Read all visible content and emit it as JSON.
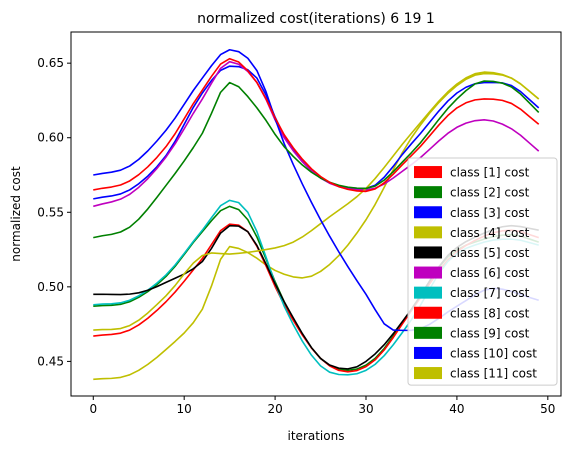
{
  "chart_data": {
    "type": "line",
    "title": "normalized cost(iterations) 6 19 1",
    "xlabel": "iterations",
    "ylabel": "normalized cost",
    "xlim": [
      -2.45,
      51.45
    ],
    "ylim": [
      0.4268,
      0.6709
    ],
    "xticks": [
      0,
      10,
      20,
      30,
      40,
      50
    ],
    "yticks": [
      0.45,
      0.5,
      0.55,
      0.6,
      0.65
    ],
    "ytick_labels": [
      "0.45",
      "0.50",
      "0.55",
      "0.60",
      "0.65"
    ],
    "legend_position": "lower right",
    "x_range": [
      0,
      49
    ],
    "series": [
      {
        "name": "class [1] cost",
        "color": "#ff0000",
        "anchors": [
          [
            0,
            0.565
          ],
          [
            4,
            0.571
          ],
          [
            8,
            0.594
          ],
          [
            12,
            0.632
          ],
          [
            15,
            0.653
          ],
          [
            18,
            0.637
          ],
          [
            21,
            0.602
          ],
          [
            25,
            0.574
          ],
          [
            30,
            0.564
          ],
          [
            35,
            0.588
          ],
          [
            40,
            0.62
          ],
          [
            43,
            0.626
          ],
          [
            46,
            0.623
          ],
          [
            49,
            0.609
          ]
        ]
      },
      {
        "name": "class [2] cost",
        "color": "#008000",
        "anchors": [
          [
            0,
            0.533
          ],
          [
            4,
            0.54
          ],
          [
            8,
            0.568
          ],
          [
            12,
            0.603
          ],
          [
            15,
            0.637
          ],
          [
            18,
            0.62
          ],
          [
            21,
            0.594
          ],
          [
            25,
            0.573
          ],
          [
            30,
            0.566
          ],
          [
            35,
            0.59
          ],
          [
            40,
            0.626
          ],
          [
            43,
            0.638
          ],
          [
            46,
            0.634
          ],
          [
            49,
            0.617
          ]
        ]
      },
      {
        "name": "class [3] cost",
        "color": "#0000ff",
        "anchors": [
          [
            0,
            0.575
          ],
          [
            4,
            0.581
          ],
          [
            8,
            0.605
          ],
          [
            12,
            0.64
          ],
          [
            15,
            0.659
          ],
          [
            18,
            0.645
          ],
          [
            21,
            0.596
          ],
          [
            25,
            0.545
          ],
          [
            30,
            0.495
          ],
          [
            33,
            0.471
          ],
          [
            36,
            0.472
          ],
          [
            40,
            0.487
          ],
          [
            44,
            0.499
          ],
          [
            49,
            0.491
          ]
        ]
      },
      {
        "name": "class [4] cost",
        "color": "#bfbf00",
        "anchors": [
          [
            0,
            0.471
          ],
          [
            4,
            0.474
          ],
          [
            8,
            0.494
          ],
          [
            12,
            0.521
          ],
          [
            15,
            0.522
          ],
          [
            18,
            0.524
          ],
          [
            22,
            0.53
          ],
          [
            26,
            0.547
          ],
          [
            30,
            0.566
          ],
          [
            35,
            0.603
          ],
          [
            40,
            0.636
          ],
          [
            43,
            0.644
          ],
          [
            46,
            0.64
          ],
          [
            49,
            0.626
          ]
        ]
      },
      {
        "name": "class [5] cost",
        "color": "#000000",
        "anchors": [
          [
            0,
            0.495
          ],
          [
            5,
            0.496
          ],
          [
            8,
            0.503
          ],
          [
            12,
            0.517
          ],
          [
            15,
            0.541
          ],
          [
            17,
            0.537
          ],
          [
            21,
            0.49
          ],
          [
            25,
            0.452
          ],
          [
            28,
            0.445
          ],
          [
            31,
            0.455
          ],
          [
            35,
            0.485
          ],
          [
            39,
            0.521
          ],
          [
            43,
            0.536
          ],
          [
            46,
            0.541
          ],
          [
            49,
            0.538
          ]
        ]
      },
      {
        "name": "class [6] cost",
        "color": "#bf00bf",
        "anchors": [
          [
            0,
            0.554
          ],
          [
            4,
            0.562
          ],
          [
            8,
            0.587
          ],
          [
            12,
            0.626
          ],
          [
            15,
            0.651
          ],
          [
            18,
            0.637
          ],
          [
            21,
            0.6
          ],
          [
            25,
            0.573
          ],
          [
            30,
            0.565
          ],
          [
            35,
            0.582
          ],
          [
            40,
            0.607
          ],
          [
            43,
            0.612
          ],
          [
            46,
            0.606
          ],
          [
            49,
            0.591
          ]
        ]
      },
      {
        "name": "class [7] cost",
        "color": "#00bfbf",
        "anchors": [
          [
            0,
            0.488
          ],
          [
            4,
            0.491
          ],
          [
            8,
            0.508
          ],
          [
            12,
            0.538
          ],
          [
            15,
            0.558
          ],
          [
            17,
            0.55
          ],
          [
            21,
            0.487
          ],
          [
            25,
            0.447
          ],
          [
            28,
            0.441
          ],
          [
            31,
            0.448
          ],
          [
            35,
            0.478
          ],
          [
            39,
            0.517
          ],
          [
            43,
            0.53
          ],
          [
            46,
            0.532
          ],
          [
            49,
            0.528
          ]
        ]
      },
      {
        "name": "class [8] cost",
        "color": "#ff0000",
        "anchors": [
          [
            0,
            0.467
          ],
          [
            4,
            0.471
          ],
          [
            8,
            0.49
          ],
          [
            12,
            0.519
          ],
          [
            15,
            0.542
          ],
          [
            17,
            0.537
          ],
          [
            21,
            0.488
          ],
          [
            25,
            0.452
          ],
          [
            28,
            0.443
          ],
          [
            31,
            0.451
          ],
          [
            35,
            0.484
          ],
          [
            39,
            0.518
          ],
          [
            43,
            0.534
          ],
          [
            46,
            0.538
          ],
          [
            49,
            0.533
          ]
        ]
      },
      {
        "name": "class [9] cost",
        "color": "#008000",
        "anchors": [
          [
            0,
            0.487
          ],
          [
            4,
            0.49
          ],
          [
            8,
            0.507
          ],
          [
            12,
            0.537
          ],
          [
            15,
            0.554
          ],
          [
            17,
            0.545
          ],
          [
            21,
            0.49
          ],
          [
            25,
            0.452
          ],
          [
            28,
            0.444
          ],
          [
            31,
            0.452
          ],
          [
            35,
            0.485
          ],
          [
            39,
            0.52
          ],
          [
            43,
            0.532
          ],
          [
            46,
            0.535
          ],
          [
            49,
            0.53
          ]
        ]
      },
      {
        "name": "class [10] cost",
        "color": "#0000ff",
        "anchors": [
          [
            0,
            0.559
          ],
          [
            4,
            0.565
          ],
          [
            8,
            0.588
          ],
          [
            12,
            0.63
          ],
          [
            15,
            0.648
          ],
          [
            18,
            0.64
          ],
          [
            21,
            0.601
          ],
          [
            25,
            0.573
          ],
          [
            30,
            0.566
          ],
          [
            35,
            0.596
          ],
          [
            40,
            0.63
          ],
          [
            43,
            0.637
          ],
          [
            46,
            0.635
          ],
          [
            49,
            0.62
          ]
        ]
      },
      {
        "name": "class [11] cost",
        "color": "#bfbf00",
        "anchors": [
          [
            0,
            0.438
          ],
          [
            4,
            0.441
          ],
          [
            8,
            0.458
          ],
          [
            12,
            0.485
          ],
          [
            15,
            0.527
          ],
          [
            17,
            0.523
          ],
          [
            20,
            0.511
          ],
          [
            23,
            0.506
          ],
          [
            26,
            0.515
          ],
          [
            30,
            0.545
          ],
          [
            35,
            0.6
          ],
          [
            40,
            0.635
          ],
          [
            43,
            0.643
          ],
          [
            46,
            0.64
          ],
          [
            49,
            0.626
          ]
        ]
      }
    ]
  }
}
